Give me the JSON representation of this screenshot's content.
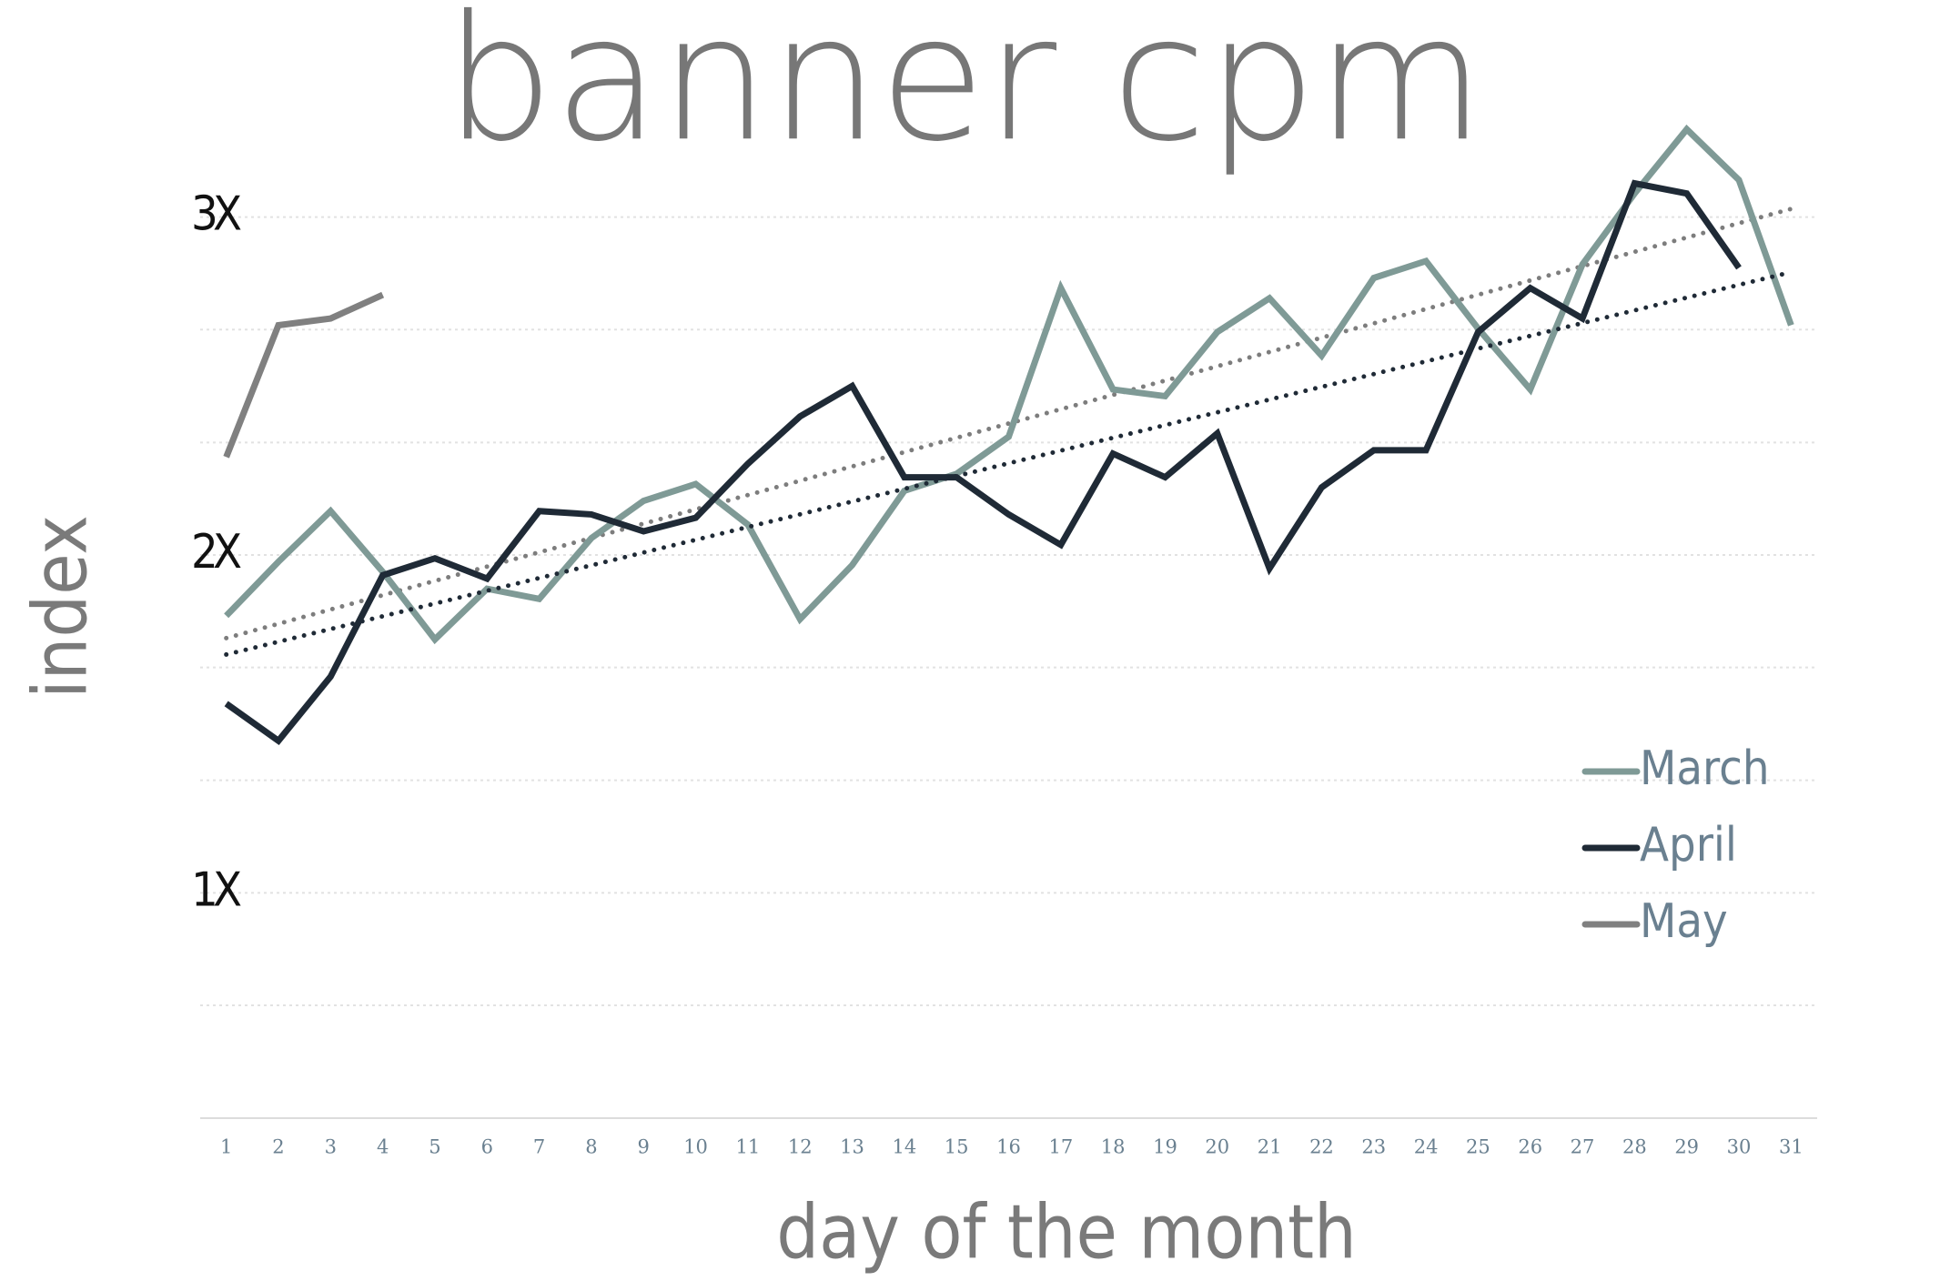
{
  "chart_data": {
    "type": "line",
    "title": "banner cpm",
    "x_label": "day of the month",
    "y_label": "index",
    "x": [
      1,
      2,
      3,
      4,
      5,
      6,
      7,
      8,
      9,
      10,
      11,
      12,
      13,
      14,
      15,
      16,
      17,
      18,
      19,
      20,
      21,
      22,
      23,
      24,
      25,
      26,
      27,
      28,
      29,
      30,
      31
    ],
    "xlim": [
      0.5,
      31.5
    ],
    "ylim": [
      0.333,
      3.333
    ],
    "yticks": [
      {
        "value": 1,
        "label": "1X"
      },
      {
        "value": 2,
        "label": "2X"
      },
      {
        "value": 3,
        "label": "3X"
      }
    ],
    "ygrid": [
      0.333,
      0.667,
      1,
      1.333,
      1.667,
      2,
      2.333,
      2.667,
      3
    ],
    "grid": true,
    "legend": "center right",
    "series": [
      {
        "name": "March",
        "color": "#7f9a96",
        "trendline": true,
        "trend_color": "#7d7d7d",
        "values": [
          1.82,
          1.98,
          2.13,
          1.95,
          1.75,
          1.9,
          1.87,
          2.05,
          2.16,
          2.21,
          2.09,
          1.81,
          1.97,
          2.19,
          2.24,
          2.35,
          2.79,
          2.49,
          2.47,
          2.66,
          2.76,
          2.59,
          2.82,
          2.87,
          2.67,
          2.49,
          2.86,
          3.07,
          3.26,
          3.11,
          2.68
        ]
      },
      {
        "name": "April",
        "color": "#1f2a36",
        "trendline": true,
        "trend_color": "#1f2a36",
        "values": [
          1.56,
          1.45,
          1.64,
          1.94,
          1.99,
          1.93,
          2.13,
          2.12,
          2.07,
          2.11,
          2.27,
          2.41,
          2.5,
          2.23,
          2.23,
          2.12,
          2.03,
          2.3,
          2.23,
          2.36,
          1.96,
          2.2,
          2.31,
          2.31,
          2.66,
          2.79,
          2.7,
          3.1,
          3.07,
          2.85,
          null
        ]
      },
      {
        "name": "May",
        "color": "#808080",
        "trendline": false,
        "values": [
          2.29,
          2.68,
          2.7,
          2.77,
          null,
          null,
          null,
          null,
          null,
          null,
          null,
          null,
          null,
          null,
          null,
          null,
          null,
          null,
          null,
          null,
          null,
          null,
          null,
          null,
          null,
          null,
          null,
          null,
          null,
          null,
          null
        ]
      }
    ]
  }
}
